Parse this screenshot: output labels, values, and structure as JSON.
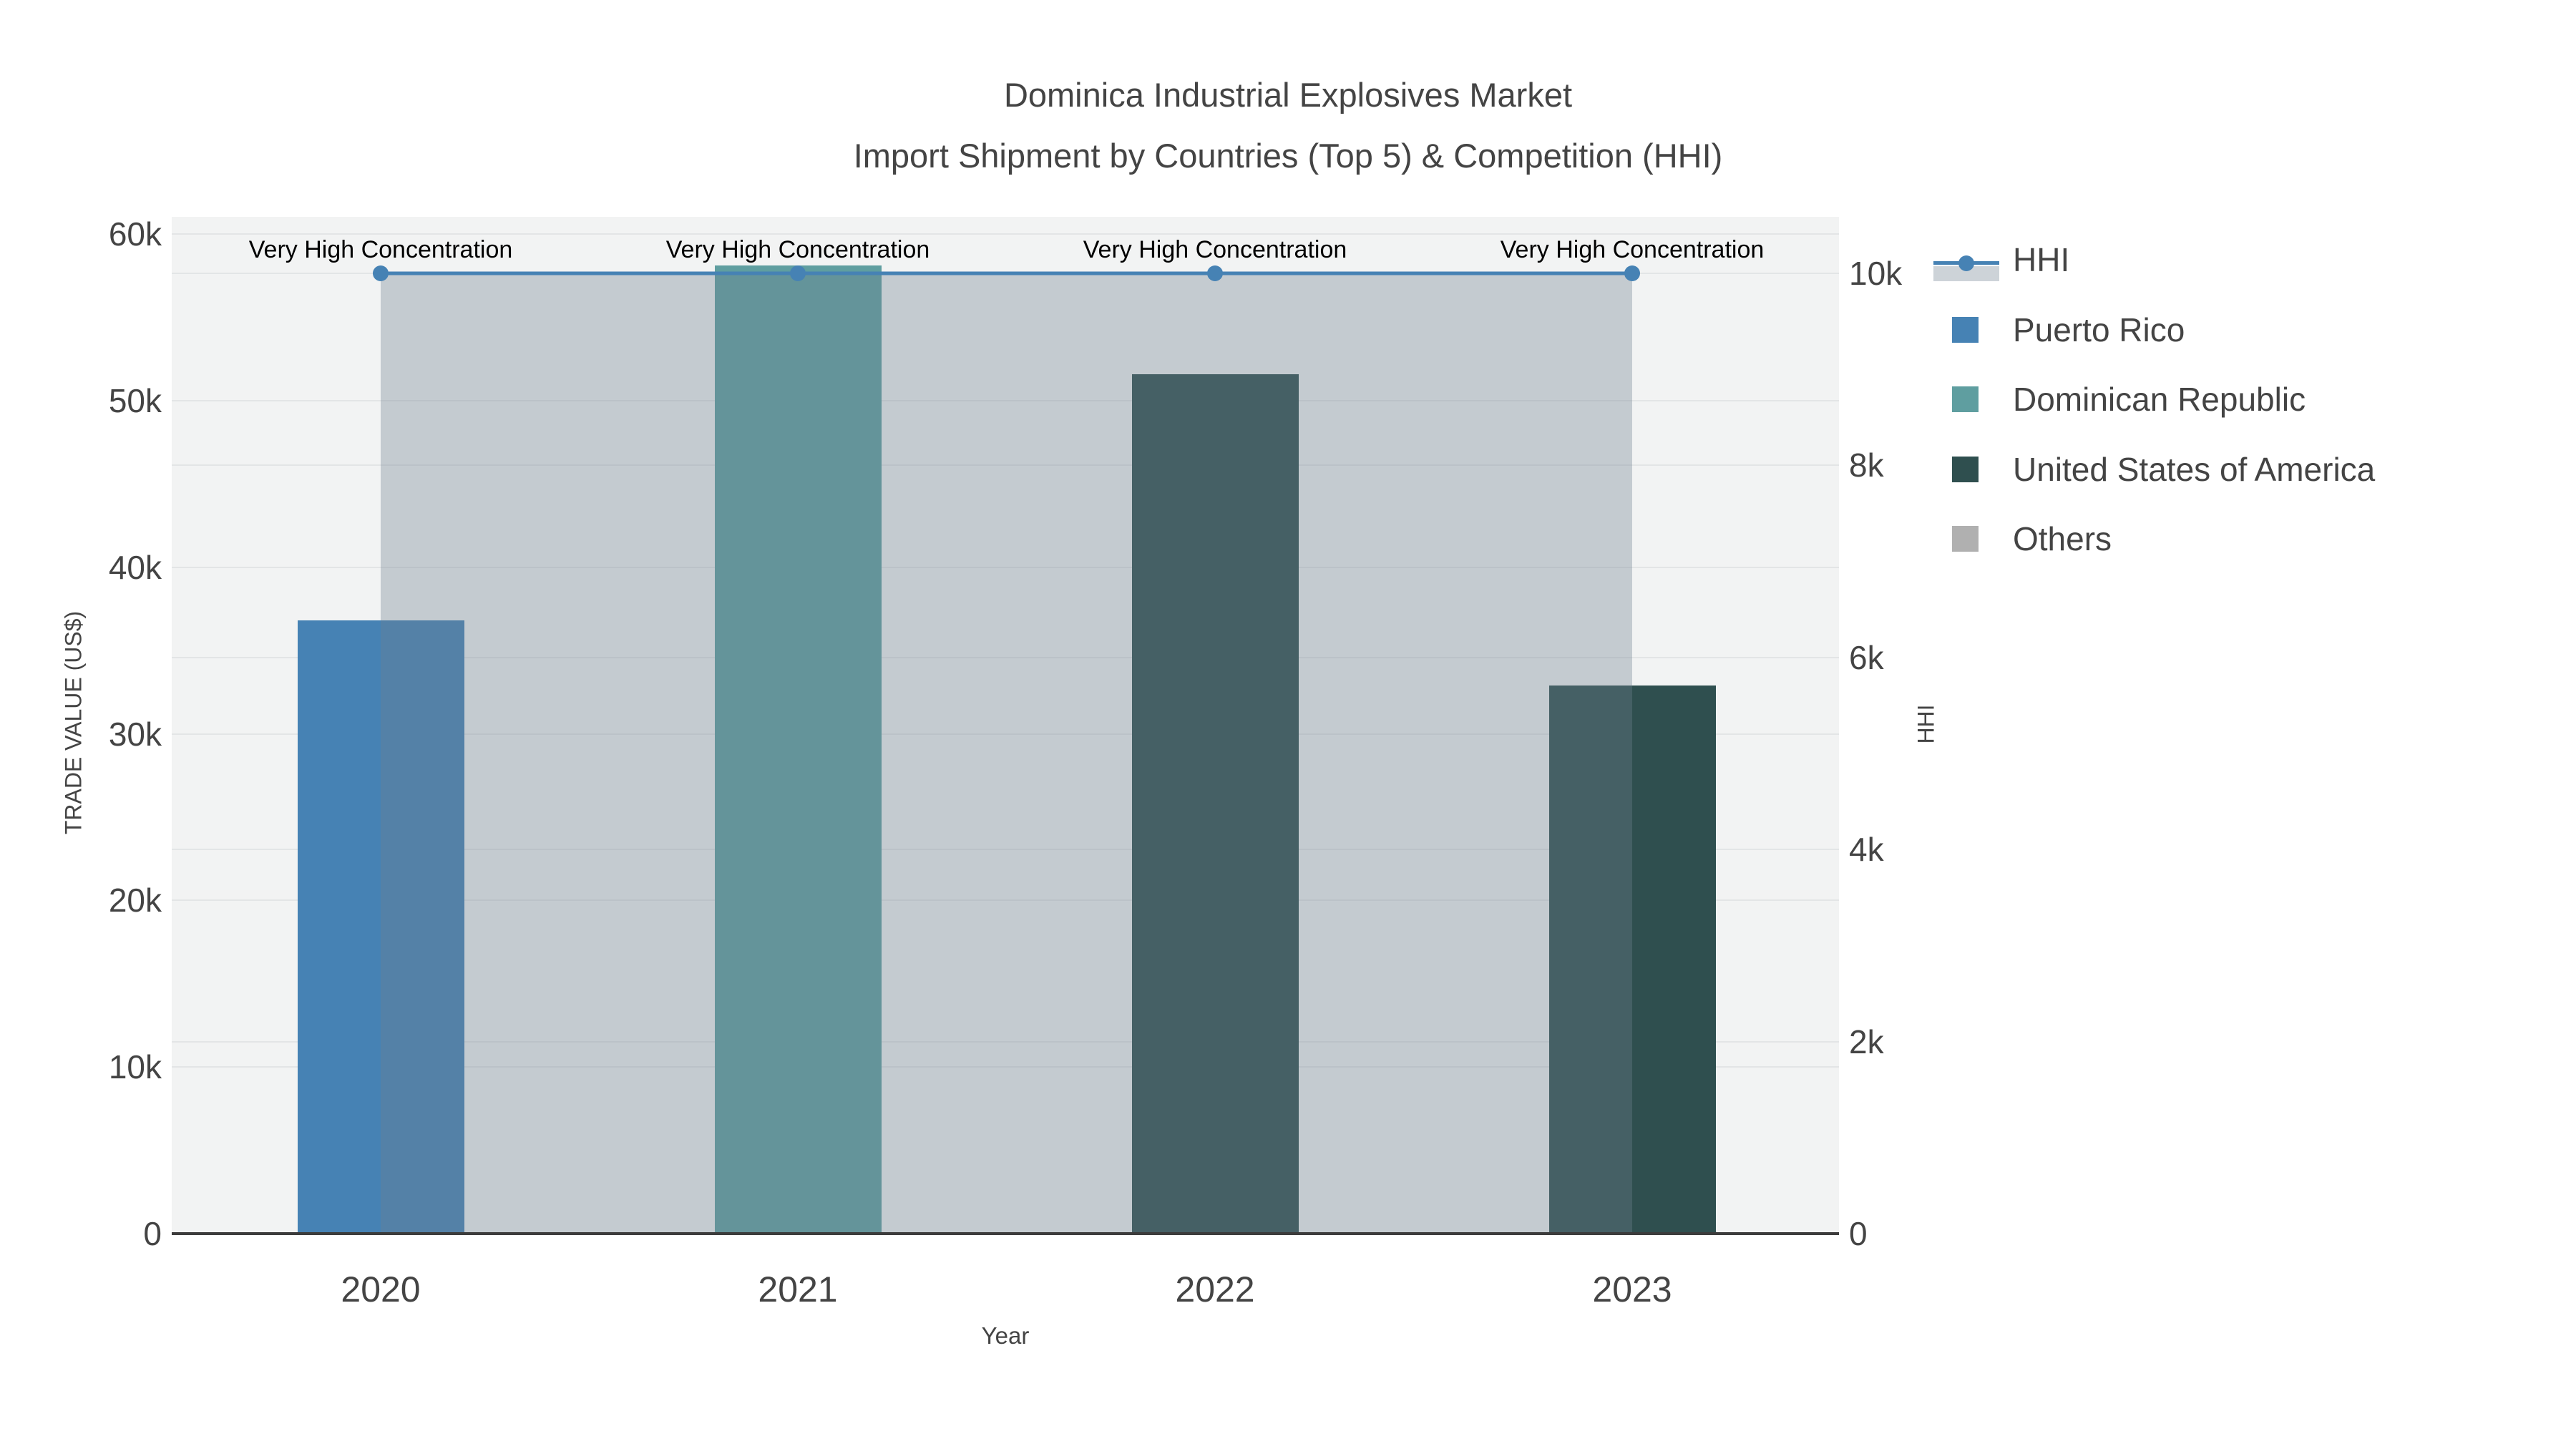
{
  "figure": {
    "title": "Dominica Industrial Explosives Market",
    "subtitle": "Import Shipment by Countries (Top 5) & Competition (HHI)"
  },
  "chart_data": {
    "type": "bar+line",
    "title": "Dominica Industrial Explosives Market",
    "subtitle": "Import Shipment by Countries (Top 5) & Competition (HHI)",
    "categories": [
      "2020",
      "2021",
      "2022",
      "2023"
    ],
    "bars": [
      {
        "year": "2020",
        "country": "Puerto Rico",
        "value": 36800,
        "color": "#4682B4"
      },
      {
        "year": "2021",
        "country": "Dominican Republic",
        "value": 58100,
        "color": "#5F9EA0"
      },
      {
        "year": "2022",
        "country": "United States of America",
        "value": 51600,
        "color": "#2F4F4F"
      },
      {
        "year": "2023",
        "country": "United States of America",
        "value": 32900,
        "color": "#2F4F4F"
      }
    ],
    "hhi": {
      "name": "HHI",
      "values": [
        10000,
        10000,
        10000,
        10000
      ],
      "line_color": "#4682B4",
      "fill_color": "rgba(112,128,144,0.35)",
      "marker_radius": 11,
      "line_width": 5
    },
    "annotations": [
      {
        "year": "2020",
        "text": "Very High Concentration"
      },
      {
        "year": "2021",
        "text": "Very High Concentration"
      },
      {
        "year": "2022",
        "text": "Very High Concentration"
      },
      {
        "year": "2023",
        "text": "Very High Concentration"
      }
    ],
    "y_left": {
      "label": "TRADE VALUE (US$)",
      "range": [
        0,
        61000
      ],
      "ticks": [
        {
          "label": "0",
          "value": 0
        },
        {
          "label": "10k",
          "value": 10000
        },
        {
          "label": "20k",
          "value": 20000
        },
        {
          "label": "30k",
          "value": 30000
        },
        {
          "label": "40k",
          "value": 40000
        },
        {
          "label": "50k",
          "value": 50000
        },
        {
          "label": "60k",
          "value": 60000
        }
      ]
    },
    "y_right": {
      "label": "HHI",
      "range": [
        0,
        10590
      ],
      "ticks": [
        {
          "label": "0",
          "value": 0
        },
        {
          "label": "2k",
          "value": 2000
        },
        {
          "label": "4k",
          "value": 4000
        },
        {
          "label": "6k",
          "value": 6000
        },
        {
          "label": "8k",
          "value": 8000
        },
        {
          "label": "10k",
          "value": 10000
        }
      ]
    },
    "x_axis": {
      "label": "Year"
    },
    "legend": [
      {
        "label": "HHI",
        "type": "line",
        "color": "#4682B4"
      },
      {
        "label": "Puerto Rico",
        "type": "swatch",
        "color": "#4682B4"
      },
      {
        "label": "Dominican Republic",
        "type": "swatch",
        "color": "#5F9EA0"
      },
      {
        "label": "United States of America",
        "type": "swatch",
        "color": "#2F4F4F"
      },
      {
        "label": "Others",
        "type": "swatch",
        "color": "#B0B0B0"
      }
    ],
    "grid": true,
    "legend_position": "right",
    "plot_bg": "#f2f3f3"
  }
}
